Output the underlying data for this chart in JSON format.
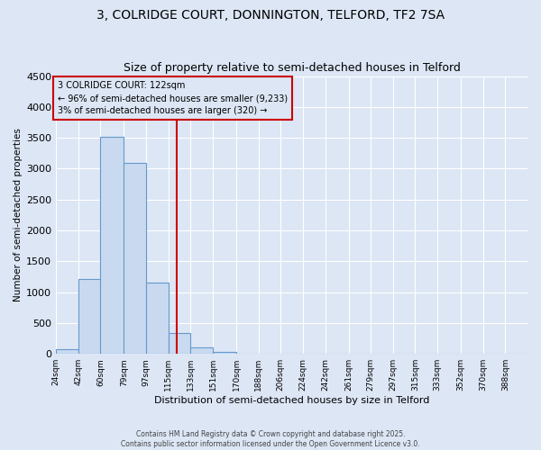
{
  "title": "3, COLRIDGE COURT, DONNINGTON, TELFORD, TF2 7SA",
  "subtitle": "Size of property relative to semi-detached houses in Telford",
  "xlabel": "Distribution of semi-detached houses by size in Telford",
  "ylabel": "Number of semi-detached properties",
  "bin_labels": [
    "24sqm",
    "42sqm",
    "60sqm",
    "79sqm",
    "97sqm",
    "115sqm",
    "133sqm",
    "151sqm",
    "170sqm",
    "188sqm",
    "206sqm",
    "224sqm",
    "242sqm",
    "261sqm",
    "279sqm",
    "297sqm",
    "315sqm",
    "333sqm",
    "352sqm",
    "370sqm",
    "388sqm"
  ],
  "bin_edges": [
    24,
    42,
    60,
    79,
    97,
    115,
    133,
    151,
    170,
    188,
    206,
    224,
    242,
    261,
    279,
    297,
    315,
    333,
    352,
    370,
    388,
    406
  ],
  "bar_heights": [
    80,
    1220,
    3520,
    3100,
    1160,
    340,
    100,
    30,
    10,
    0,
    0,
    0,
    0,
    0,
    0,
    0,
    0,
    0,
    0,
    0,
    0
  ],
  "bar_color": "#c9daf0",
  "bar_edge_color": "#6699cc",
  "property_value": 122,
  "vline_color": "#cc0000",
  "annotation_title": "3 COLRIDGE COURT: 122sqm",
  "annotation_line1": "← 96% of semi-detached houses are smaller (9,233)",
  "annotation_line2": "3% of semi-detached houses are larger (320) →",
  "annotation_box_edge": "#cc0000",
  "ylim": [
    0,
    4500
  ],
  "yticks": [
    0,
    500,
    1000,
    1500,
    2000,
    2500,
    3000,
    3500,
    4000,
    4500
  ],
  "background_color": "#dce6f5",
  "plot_bg_color": "#dce6f5",
  "footer1": "Contains HM Land Registry data © Crown copyright and database right 2025.",
  "footer2": "Contains public sector information licensed under the Open Government Licence v3.0.",
  "title_fontsize": 10,
  "subtitle_fontsize": 9
}
